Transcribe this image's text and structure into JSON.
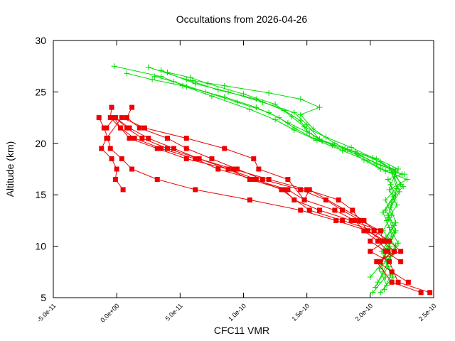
{
  "chart_data": {
    "type": "line",
    "title": "Occultations from 2026-04-26",
    "xlabel": "CFC11 VMR",
    "ylabel": "Altitude (km)",
    "xlim": [
      -5e-11,
      2.5e-10
    ],
    "ylim": [
      5,
      30
    ],
    "x_ticks": [
      {
        "value": -5e-11,
        "label": "-5.0e-11"
      },
      {
        "value": 0,
        "label": "0.0e+00"
      },
      {
        "value": 5e-11,
        "label": "5.0e-11"
      },
      {
        "value": 1e-10,
        "label": "1.0e-10"
      },
      {
        "value": 1.5e-10,
        "label": "1.5e-10"
      },
      {
        "value": 2e-10,
        "label": "2.0e-10"
      },
      {
        "value": 2.5e-10,
        "label": "2.5e-10"
      }
    ],
    "y_ticks": [
      {
        "value": 5,
        "label": "5"
      },
      {
        "value": 10,
        "label": "10"
      },
      {
        "value": 15,
        "label": "15"
      },
      {
        "value": 20,
        "label": "20"
      },
      {
        "value": 25,
        "label": "25"
      },
      {
        "value": 30,
        "label": "30"
      }
    ],
    "grid": false,
    "legend": "none",
    "series": [
      {
        "color": "#00dd00",
        "marker": "plus",
        "points": [
          [
            2.02e-10,
            5.5
          ],
          [
            2.12e-10,
            7.0
          ],
          [
            2.08e-10,
            8.5
          ],
          [
            2.15e-10,
            10.0
          ],
          [
            2.2e-10,
            11.5
          ],
          [
            2.14e-10,
            13.0
          ],
          [
            2.19e-10,
            14.5
          ],
          [
            2.16e-10,
            16.0
          ],
          [
            2.22e-10,
            17.5
          ],
          [
            2.05e-10,
            18.5
          ],
          [
            1.8e-10,
            19.5
          ],
          [
            1.55e-10,
            20.5
          ],
          [
            1.4e-10,
            21.5
          ],
          [
            1.28e-10,
            22.5
          ],
          [
            1.1e-10,
            23.5
          ],
          [
            8.5e-11,
            24.5
          ],
          [
            5.5e-11,
            25.5
          ],
          [
            3.5e-11,
            26.5
          ],
          [
            -2e-12,
            27.5
          ]
        ]
      },
      {
        "color": "#00dd00",
        "marker": "plus",
        "points": [
          [
            2.08e-10,
            5.5
          ],
          [
            2.18e-10,
            7.0
          ],
          [
            2.13e-10,
            8.5
          ],
          [
            2.2e-10,
            10.0
          ],
          [
            2.1e-10,
            11.5
          ],
          [
            2.17e-10,
            13.0
          ],
          [
            2.12e-10,
            14.5
          ],
          [
            2.24e-10,
            16.0
          ],
          [
            2.18e-10,
            17.5
          ],
          [
            2.08e-10,
            18.2
          ],
          [
            1.88e-10,
            19.2
          ],
          [
            1.62e-10,
            20.2
          ],
          [
            1.5e-10,
            21.2
          ],
          [
            1.45e-10,
            22.2
          ],
          [
            1.32e-10,
            23.2
          ],
          [
            1.1e-10,
            24.3
          ],
          [
            8e-11,
            25.2
          ],
          [
            5.5e-11,
            26.2
          ],
          [
            2.5e-11,
            27.4
          ]
        ]
      },
      {
        "color": "#00dd00",
        "marker": "plus",
        "points": [
          [
            2.04e-10,
            6.0
          ],
          [
            2.1e-10,
            7.5
          ],
          [
            2.16e-10,
            9.0
          ],
          [
            2.11e-10,
            10.5
          ],
          [
            2.19e-10,
            12.0
          ],
          [
            2.12e-10,
            13.5
          ],
          [
            2.2e-10,
            15.0
          ],
          [
            2.14e-10,
            16.5
          ],
          [
            2.25e-10,
            17.0
          ],
          [
            2.1e-10,
            17.8
          ],
          [
            1.92e-10,
            18.8
          ],
          [
            1.7e-10,
            19.8
          ],
          [
            1.52e-10,
            21.0
          ],
          [
            1.35e-10,
            22.0
          ],
          [
            1.2e-10,
            23.0
          ],
          [
            9.5e-11,
            24.0
          ],
          [
            7e-11,
            25.0
          ],
          [
            4.5e-11,
            26.0
          ],
          [
            3e-11,
            26.5
          ]
        ]
      },
      {
        "color": "#00dd00",
        "marker": "plus",
        "points": [
          [
            2.06e-10,
            6.5
          ],
          [
            2.14e-10,
            8.0
          ],
          [
            2.09e-10,
            9.5
          ],
          [
            2.17e-10,
            11.0
          ],
          [
            2.13e-10,
            12.5
          ],
          [
            2.21e-10,
            14.0
          ],
          [
            2.15e-10,
            15.5
          ],
          [
            2.29e-10,
            16.5
          ],
          [
            2.12e-10,
            17.3
          ],
          [
            1.98e-10,
            18.3
          ],
          [
            1.78e-10,
            19.3
          ],
          [
            1.58e-10,
            20.3
          ],
          [
            1.4e-10,
            21.3
          ],
          [
            1.25e-10,
            22.3
          ],
          [
            1.05e-10,
            23.3
          ],
          [
            7.5e-11,
            24.6
          ],
          [
            5.2e-11,
            25.6
          ],
          [
            2.8e-11,
            26.2
          ],
          [
            8e-12,
            26.8
          ]
        ]
      },
      {
        "color": "#00dd00",
        "marker": "plus",
        "points": [
          [
            2.11e-10,
            5.8
          ],
          [
            2.16e-10,
            7.2
          ],
          [
            2.12e-10,
            8.8
          ],
          [
            2.22e-10,
            10.3
          ],
          [
            2.15e-10,
            11.8
          ],
          [
            2.1e-10,
            13.3
          ],
          [
            2.18e-10,
            14.8
          ],
          [
            2.26e-10,
            15.8
          ],
          [
            2.15e-10,
            17.6
          ],
          [
            2.02e-10,
            18.6
          ],
          [
            1.85e-10,
            19.6
          ],
          [
            1.65e-10,
            20.6
          ],
          [
            1.48e-10,
            21.6
          ],
          [
            1.38e-10,
            22.6
          ],
          [
            1.25e-10,
            23.8
          ],
          [
            1e-10,
            24.8
          ],
          [
            7.2e-11,
            25.8
          ],
          [
            5.8e-11,
            26.4
          ],
          [
            4e-11,
            26.9
          ]
        ]
      },
      {
        "color": "#00dd00",
        "marker": "plus",
        "points": [
          [
            2.13e-10,
            6.2
          ],
          [
            2.07e-10,
            7.8
          ],
          [
            2.18e-10,
            9.3
          ],
          [
            2.12e-10,
            10.8
          ],
          [
            2.2e-10,
            12.3
          ],
          [
            2.16e-10,
            13.8
          ],
          [
            2.23e-10,
            15.3
          ],
          [
            2.19e-10,
            16.8
          ],
          [
            2.2e-10,
            17.4
          ],
          [
            2.05e-10,
            18.0
          ],
          [
            1.9e-10,
            19.0
          ],
          [
            1.72e-10,
            20.0
          ],
          [
            1.55e-10,
            21.4
          ],
          [
            1.45e-10,
            22.8
          ],
          [
            1.6e-10,
            23.5
          ],
          [
            1.45e-10,
            24.3
          ],
          [
            1.2e-10,
            24.9
          ],
          [
            8.5e-11,
            25.6
          ],
          [
            6e-11,
            26.1
          ]
        ]
      },
      {
        "color": "#00dd00",
        "marker": "plus",
        "points": [
          [
            2e-10,
            7.0
          ],
          [
            2.09e-10,
            8.3
          ],
          [
            2.14e-10,
            9.8
          ],
          [
            2.19e-10,
            11.3
          ],
          [
            2.14e-10,
            12.8
          ],
          [
            2.17e-10,
            14.3
          ],
          [
            2.21e-10,
            15.6
          ],
          [
            2.17e-10,
            17.2
          ],
          [
            2.27e-10,
            17.0
          ],
          [
            2.08e-10,
            17.5
          ],
          [
            1.95e-10,
            18.4
          ],
          [
            1.82e-10,
            19.4
          ],
          [
            1.6e-10,
            20.4
          ],
          [
            1.5e-10,
            21.8
          ],
          [
            1.4e-10,
            23.0
          ],
          [
            1.15e-10,
            24.0
          ],
          [
            8.8e-11,
            25.0
          ],
          [
            6.2e-11,
            25.8
          ],
          [
            3.5e-11,
            27.1
          ]
        ]
      },
      {
        "color": "#ee0000",
        "marker": "square",
        "points": [
          [
            2.47e-10,
            5.5
          ],
          [
            2.22e-10,
            6.5
          ],
          [
            2.15e-10,
            8.5
          ],
          [
            2e-10,
            9.5
          ],
          [
            2.12e-10,
            10.5
          ],
          [
            1.98e-10,
            11.5
          ],
          [
            1.73e-10,
            12.5
          ],
          [
            1.45e-10,
            13.5
          ],
          [
            1.05e-10,
            14.5
          ],
          [
            6.2e-11,
            15.5
          ],
          [
            3.2e-11,
            16.5
          ],
          [
            1.2e-11,
            17.5
          ],
          [
            4e-12,
            18.5
          ],
          [
            -5e-12,
            19.5
          ],
          [
            -7e-12,
            20.5
          ],
          [
            -1e-11,
            21.5
          ],
          [
            -1.4e-11,
            22.5
          ]
        ]
      },
      {
        "color": "#ee0000",
        "marker": "square",
        "points": [
          [
            2.4e-10,
            5.5
          ],
          [
            2.17e-10,
            6.5
          ],
          [
            2.05e-10,
            8.5
          ],
          [
            2.24e-10,
            9.5
          ],
          [
            2.15e-10,
            10.5
          ],
          [
            2.03e-10,
            11.5
          ],
          [
            1.78e-10,
            12.5
          ],
          [
            1.52e-10,
            13.5
          ],
          [
            1.3e-10,
            15.5
          ],
          [
            1.1e-10,
            16.5
          ],
          [
            8.8e-11,
            17.5
          ],
          [
            5.5e-11,
            18.5
          ],
          [
            3.2e-11,
            19.5
          ],
          [
            1e-11,
            20.5
          ],
          [
            3e-12,
            21.5
          ],
          [
            -5e-12,
            22.5
          ],
          [
            -4e-12,
            23.5
          ]
        ]
      },
      {
        "color": "#ee0000",
        "marker": "square",
        "points": [
          [
            2.3e-10,
            6.5
          ],
          [
            2.17e-10,
            7.5
          ],
          [
            2.06e-10,
            8.5
          ],
          [
            2.19e-10,
            9.5
          ],
          [
            2.1e-10,
            10.5
          ],
          [
            1.98e-10,
            11.5
          ],
          [
            1.92e-10,
            12.5
          ],
          [
            1.86e-10,
            13.5
          ],
          [
            1.75e-10,
            14.5
          ],
          [
            1.5e-10,
            15.5
          ],
          [
            1.2e-10,
            16.5
          ],
          [
            9.2e-11,
            17.5
          ],
          [
            6.5e-11,
            18.5
          ],
          [
            4e-11,
            19.5
          ],
          [
            2e-11,
            20.5
          ],
          [
            8e-12,
            21.5
          ],
          [
            -1e-12,
            22.5
          ]
        ]
      },
      {
        "color": "#ee0000",
        "marker": "square",
        "points": [
          [
            2.24e-10,
            8.5
          ],
          [
            2.12e-10,
            9.5
          ],
          [
            2e-10,
            10.5
          ],
          [
            2.08e-10,
            11.5
          ],
          [
            1.92e-10,
            12.5
          ],
          [
            1.78e-10,
            13.5
          ],
          [
            1.65e-10,
            14.5
          ],
          [
            1.45e-10,
            15.5
          ],
          [
            1.15e-10,
            16.5
          ],
          [
            9.5e-11,
            17.5
          ],
          [
            7.5e-11,
            18.5
          ],
          [
            5.5e-11,
            19.5
          ],
          [
            4e-11,
            20.5
          ],
          [
            1.8e-11,
            21.5
          ],
          [
            8e-12,
            22.5
          ],
          [
            1.2e-11,
            23.5
          ]
        ]
      },
      {
        "color": "#ee0000",
        "marker": "square",
        "points": [
          [
            2.08e-10,
            8.5
          ],
          [
            2.14e-10,
            9.5
          ],
          [
            2.06e-10,
            10.5
          ],
          [
            1.95e-10,
            11.5
          ],
          [
            1.88e-10,
            12.5
          ],
          [
            1.72e-10,
            13.5
          ],
          [
            1.48e-10,
            14.5
          ],
          [
            1.35e-10,
            15.5
          ],
          [
            1.08e-10,
            16.5
          ],
          [
            8e-11,
            17.5
          ],
          [
            6.2e-11,
            18.5
          ],
          [
            3.5e-11,
            19.5
          ],
          [
            1.4e-11,
            20.5
          ],
          [
            3e-12,
            21.5
          ],
          [
            -2e-12,
            22.5
          ],
          [
            -8e-12,
            21.5
          ]
        ]
      },
      {
        "color": "#ee0000",
        "marker": "square",
        "points": [
          [
            2.1e-10,
            10.5
          ],
          [
            2.08e-10,
            11.5
          ],
          [
            1.85e-10,
            12.5
          ],
          [
            1.6e-10,
            13.5
          ],
          [
            1.4e-10,
            14.5
          ],
          [
            1.32e-10,
            15.5
          ],
          [
            1.05e-10,
            16.5
          ],
          [
            8.8e-11,
            17.5
          ],
          [
            6.5e-11,
            18.5
          ],
          [
            4.5e-11,
            19.5
          ],
          [
            2.5e-11,
            20.5
          ],
          [
            1e-11,
            21.5
          ],
          [
            -1e-12,
            22.5
          ]
        ]
      },
      {
        "color": "#ee0000",
        "marker": "square",
        "points": [
          [
            2.03e-10,
            11.5
          ],
          [
            1.95e-10,
            12.5
          ],
          [
            1.52e-10,
            15.5
          ],
          [
            1.48e-10,
            14.5
          ],
          [
            1.35e-10,
            16.5
          ],
          [
            1.12e-10,
            17.5
          ],
          [
            1.08e-10,
            18.5
          ],
          [
            8.5e-11,
            19.5
          ],
          [
            5.5e-11,
            20.5
          ],
          [
            2.2e-11,
            21.5
          ],
          [
            4e-12,
            22.5
          ],
          [
            -8e-12,
            20.5
          ],
          [
            -1.2e-11,
            19.5
          ],
          [
            -4e-12,
            18.5
          ],
          [
            0.0,
            17.5
          ],
          [
            -1e-12,
            16.5
          ],
          [
            5e-12,
            15.5
          ]
        ]
      }
    ]
  }
}
